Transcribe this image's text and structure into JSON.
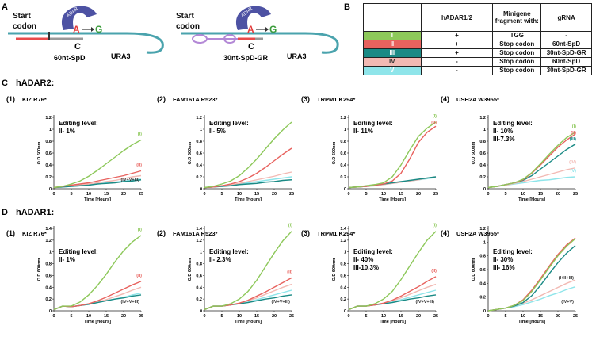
{
  "panel_a": {
    "label": "A",
    "left": {
      "start": "Start codon",
      "enzyme": "ADAR",
      "edit_from": "A",
      "edit_to": "G",
      "paired": "C",
      "guide": "60nt-SpD",
      "reporter": "URA3"
    },
    "right": {
      "start": "Start codon",
      "enzyme": "ADAR",
      "edit_from": "A",
      "edit_to": "G",
      "paired": "C",
      "guide": "30nt-SpD-GR",
      "reporter": "URA3"
    }
  },
  "panel_b": {
    "label": "B",
    "header": [
      "hADAR1/2",
      "Minigene fragment with:",
      "gRNA"
    ],
    "rows": [
      {
        "id": "I",
        "color": "#8dc85a",
        "cells": [
          "+",
          "TGG",
          "-"
        ]
      },
      {
        "id": "II",
        "color": "#e8625e",
        "cells": [
          "+",
          "Stop codon",
          "60nt-SpD"
        ]
      },
      {
        "id": "III",
        "color": "#1a8a85",
        "cells": [
          "+",
          "Stop codon",
          "30nt-SpD-GR"
        ]
      },
      {
        "id": "IV",
        "color": "#f2b9b3",
        "cells": [
          "-",
          "Stop codon",
          "60nt-SpD"
        ]
      },
      {
        "id": "V",
        "color": "#8fe5ea",
        "cells": [
          "-",
          "Stop codon",
          "30nt-SpD-GR"
        ]
      }
    ]
  },
  "panel_c": {
    "label": "C",
    "title": "hADAR2:"
  },
  "panel_d": {
    "label": "D",
    "title": "hADAR1:"
  },
  "chart_data": [
    {
      "type": "line",
      "panel": "(1)",
      "title": "KIZ R76*",
      "annotation": [
        "Editing level:",
        "II- 1%"
      ],
      "x_label": "Time [Hours]",
      "y_label": "O.D 600nm",
      "x": [
        0,
        2.5,
        5,
        7.5,
        10,
        12.5,
        15,
        17.5,
        20,
        22.5,
        25
      ],
      "xlim": [
        0,
        25
      ],
      "xticks": [
        0,
        5,
        10,
        15,
        20,
        25
      ],
      "ylim": [
        0,
        1.2
      ],
      "yticks": [
        0,
        0.2,
        0.4,
        0.6,
        0.8,
        1,
        1.2
      ],
      "series": [
        {
          "name": "(I)",
          "color": "#8dc85a",
          "values": [
            0.02,
            0.04,
            0.08,
            0.13,
            0.21,
            0.31,
            0.42,
            0.53,
            0.64,
            0.74,
            0.82
          ]
        },
        {
          "name": "(II)",
          "color": "#e8625e",
          "values": [
            0.02,
            0.04,
            0.06,
            0.08,
            0.1,
            0.13,
            0.16,
            0.19,
            0.22,
            0.26,
            0.3
          ]
        },
        {
          "color": "#1a8a85",
          "values": [
            0.02,
            0.03,
            0.04,
            0.05,
            0.06,
            0.08,
            0.09,
            0.1,
            0.12,
            0.13,
            0.15
          ]
        },
        {
          "color": "#f2b9b3",
          "values": [
            0.02,
            0.03,
            0.05,
            0.06,
            0.08,
            0.1,
            0.12,
            0.14,
            0.17,
            0.2,
            0.22
          ]
        },
        {
          "color": "#8fe5ea",
          "values": [
            0.02,
            0.03,
            0.04,
            0.05,
            0.07,
            0.08,
            0.1,
            0.11,
            0.13,
            0.14,
            0.16
          ]
        }
      ],
      "group_labels": [
        "(IV+V+III)"
      ]
    },
    {
      "type": "line",
      "panel": "(2)",
      "title": "FAM161A R523*",
      "annotation": [
        "Editing level:",
        "II- 5%"
      ],
      "x_label": "Time [Hours]",
      "y_label": "O.D 600nm",
      "x": [
        0,
        2.5,
        5,
        7.5,
        10,
        12.5,
        15,
        17.5,
        20,
        22.5,
        25
      ],
      "xlim": [
        0,
        25
      ],
      "xticks": [
        0,
        5,
        10,
        15,
        20,
        25
      ],
      "ylim": [
        0,
        1.2
      ],
      "yticks": [
        0,
        0.2,
        0.4,
        0.6,
        0.8,
        1,
        1.2
      ],
      "series": [
        {
          "color": "#8dc85a",
          "values": [
            0.02,
            0.04,
            0.08,
            0.13,
            0.22,
            0.35,
            0.5,
            0.67,
            0.84,
            0.99,
            1.12
          ]
        },
        {
          "color": "#e8625e",
          "values": [
            0.02,
            0.03,
            0.05,
            0.08,
            0.12,
            0.18,
            0.26,
            0.36,
            0.47,
            0.58,
            0.68
          ]
        },
        {
          "color": "#1a8a85",
          "values": [
            0.02,
            0.03,
            0.04,
            0.05,
            0.07,
            0.08,
            0.09,
            0.11,
            0.12,
            0.14,
            0.15
          ]
        },
        {
          "color": "#f2b9b3",
          "values": [
            0.02,
            0.03,
            0.05,
            0.07,
            0.09,
            0.12,
            0.15,
            0.18,
            0.21,
            0.25,
            0.28
          ]
        },
        {
          "color": "#8fe5ea",
          "values": [
            0.02,
            0.03,
            0.04,
            0.06,
            0.08,
            0.1,
            0.12,
            0.14,
            0.16,
            0.18,
            0.2
          ]
        }
      ]
    },
    {
      "type": "line",
      "panel": "(3)",
      "title": "TRPM1 K294*",
      "annotation": [
        "Editing level:",
        "II- 11%"
      ],
      "x_label": "Time [Hours]",
      "y_label": "O.D 600nm",
      "x": [
        0,
        2.5,
        5,
        7.5,
        10,
        12.5,
        15,
        17.5,
        20,
        22.5,
        25
      ],
      "xlim": [
        0,
        25
      ],
      "xticks": [
        0,
        5,
        10,
        15,
        20,
        25
      ],
      "ylim": [
        0,
        1.2
      ],
      "yticks": [
        0,
        0.2,
        0.4,
        0.6,
        0.8,
        1,
        1.2
      ],
      "series": [
        {
          "name": "(I)",
          "color": "#8dc85a",
          "values": [
            0.02,
            0.03,
            0.05,
            0.07,
            0.1,
            0.2,
            0.4,
            0.65,
            0.88,
            1.02,
            1.12
          ]
        },
        {
          "name": "(II)",
          "color": "#e8625e",
          "values": [
            0.02,
            0.03,
            0.04,
            0.06,
            0.08,
            0.13,
            0.26,
            0.5,
            0.78,
            0.95,
            1.05
          ]
        },
        {
          "color": "#1a8a85",
          "values": [
            0.02,
            0.03,
            0.04,
            0.06,
            0.08,
            0.1,
            0.12,
            0.14,
            0.16,
            0.18,
            0.2
          ]
        },
        {
          "color": "#f2b9b3",
          "values": [
            0.02,
            0.03,
            0.04,
            0.05,
            0.07,
            0.09,
            0.11,
            0.13,
            0.15,
            0.18,
            0.2
          ]
        },
        {
          "color": "#8fe5ea",
          "values": [
            0.02,
            0.03,
            0.04,
            0.05,
            0.07,
            0.09,
            0.11,
            0.13,
            0.15,
            0.17,
            0.19
          ]
        }
      ]
    },
    {
      "type": "line",
      "panel": "(4)",
      "title": "USH2A W3955*",
      "annotation": [
        "Editing level:",
        "II- 10%",
        "III-7.3%"
      ],
      "x_label": "Time [Hours]",
      "y_label": "O.D 600nm",
      "x": [
        0,
        2.5,
        5,
        7.5,
        10,
        12.5,
        15,
        17.5,
        20,
        22.5,
        25
      ],
      "xlim": [
        0,
        25
      ],
      "xticks": [
        0,
        5,
        10,
        15,
        20,
        25
      ],
      "ylim": [
        0,
        1.2
      ],
      "yticks": [
        0,
        0.2,
        0.4,
        0.6,
        0.8,
        1,
        1.2
      ],
      "series": [
        {
          "name": "(I)",
          "color": "#8dc85a",
          "values": [
            0.02,
            0.04,
            0.07,
            0.1,
            0.16,
            0.27,
            0.42,
            0.58,
            0.73,
            0.86,
            0.95
          ]
        },
        {
          "name": "(II)",
          "color": "#e8625e",
          "values": [
            0.02,
            0.04,
            0.07,
            0.1,
            0.15,
            0.26,
            0.4,
            0.55,
            0.7,
            0.82,
            0.92
          ]
        },
        {
          "name": "(III)",
          "color": "#1a8a85",
          "values": [
            0.02,
            0.04,
            0.07,
            0.1,
            0.14,
            0.22,
            0.33,
            0.44,
            0.55,
            0.66,
            0.75
          ]
        },
        {
          "name": "(IV)",
          "color": "#f2b9b3",
          "values": [
            0.02,
            0.04,
            0.06,
            0.09,
            0.12,
            0.16,
            0.2,
            0.24,
            0.28,
            0.32,
            0.35
          ]
        },
        {
          "name": "(V)",
          "color": "#8fe5ea",
          "values": [
            0.02,
            0.04,
            0.06,
            0.08,
            0.1,
            0.12,
            0.14,
            0.15,
            0.17,
            0.19,
            0.2
          ]
        }
      ]
    },
    {
      "type": "line",
      "panel": "(1)",
      "title": "KIZ R76*",
      "annotation": [
        "Editing level:",
        "II- 1%"
      ],
      "x_label": "Time [Hours]",
      "y_label": "O.D 600nm",
      "x": [
        0,
        2.5,
        5,
        7.5,
        10,
        12.5,
        15,
        17.5,
        20,
        22.5,
        25
      ],
      "xlim": [
        0,
        25
      ],
      "xticks": [
        0,
        5,
        10,
        15,
        20,
        25
      ],
      "ylim": [
        0,
        1.4
      ],
      "yticks": [
        0,
        0.2,
        0.4,
        0.6,
        0.8,
        1,
        1.2,
        1.4
      ],
      "series": [
        {
          "name": "(I)",
          "color": "#8dc85a",
          "values": [
            0.02,
            0.08,
            0.08,
            0.15,
            0.27,
            0.43,
            0.62,
            0.83,
            1.02,
            1.17,
            1.28
          ]
        },
        {
          "name": "(II)",
          "color": "#e8625e",
          "values": [
            0.02,
            0.08,
            0.07,
            0.09,
            0.12,
            0.17,
            0.23,
            0.3,
            0.37,
            0.44,
            0.5
          ]
        },
        {
          "color": "#1a8a85",
          "values": [
            0.02,
            0.08,
            0.07,
            0.09,
            0.11,
            0.14,
            0.17,
            0.2,
            0.22,
            0.25,
            0.27
          ]
        },
        {
          "color": "#f2b9b3",
          "values": [
            0.02,
            0.08,
            0.07,
            0.09,
            0.12,
            0.15,
            0.19,
            0.24,
            0.29,
            0.35,
            0.4
          ]
        },
        {
          "color": "#8fe5ea",
          "values": [
            0.02,
            0.08,
            0.07,
            0.09,
            0.11,
            0.14,
            0.17,
            0.2,
            0.23,
            0.27,
            0.3
          ]
        }
      ],
      "group_labels": [
        "(IV+V+III)"
      ]
    },
    {
      "type": "line",
      "panel": "(2)",
      "title": "FAM161A R523*",
      "annotation": [
        "Editing level:",
        "II- 2.3%"
      ],
      "x_label": "Time [Hours]",
      "y_label": "O.D 600nm",
      "x": [
        0,
        2.5,
        5,
        7.5,
        10,
        12.5,
        15,
        17.5,
        20,
        22.5,
        25
      ],
      "xlim": [
        0,
        25
      ],
      "xticks": [
        0,
        5,
        10,
        15,
        20,
        25
      ],
      "ylim": [
        0,
        1.4
      ],
      "yticks": [
        0,
        0.2,
        0.4,
        0.6,
        0.8,
        1,
        1.2,
        1.4
      ],
      "series": [
        {
          "name": "(I)",
          "color": "#8dc85a",
          "values": [
            0.02,
            0.08,
            0.08,
            0.12,
            0.2,
            0.33,
            0.52,
            0.75,
            0.98,
            1.19,
            1.35
          ]
        },
        {
          "name": "(II)",
          "color": "#e8625e",
          "values": [
            0.02,
            0.08,
            0.08,
            0.1,
            0.13,
            0.18,
            0.25,
            0.32,
            0.4,
            0.48,
            0.56
          ]
        },
        {
          "color": "#1a8a85",
          "values": [
            0.02,
            0.08,
            0.08,
            0.1,
            0.12,
            0.14,
            0.17,
            0.2,
            0.22,
            0.25,
            0.27
          ]
        },
        {
          "color": "#f2b9b3",
          "values": [
            0.02,
            0.08,
            0.08,
            0.1,
            0.13,
            0.17,
            0.22,
            0.28,
            0.34,
            0.4,
            0.45
          ]
        },
        {
          "color": "#8fe5ea",
          "values": [
            0.02,
            0.08,
            0.08,
            0.1,
            0.12,
            0.15,
            0.19,
            0.23,
            0.27,
            0.31,
            0.35
          ]
        }
      ],
      "group_labels": [
        "(IV+V+III)"
      ]
    },
    {
      "type": "line",
      "panel": "(3)",
      "title": "TRPM1 K294*",
      "annotation": [
        "Editing level:",
        "II- 40%",
        "III-10.3%"
      ],
      "x_label": "Time [Hours]",
      "y_label": "O.D 600nm",
      "x": [
        0,
        2.5,
        5,
        7.5,
        10,
        12.5,
        15,
        17.5,
        20,
        22.5,
        25
      ],
      "xlim": [
        0,
        25
      ],
      "xticks": [
        0,
        5,
        10,
        15,
        20,
        25
      ],
      "ylim": [
        0,
        1.4
      ],
      "yticks": [
        0,
        0.2,
        0.4,
        0.6,
        0.8,
        1,
        1.2,
        1.4
      ],
      "series": [
        {
          "name": "(I)",
          "color": "#8dc85a",
          "values": [
            0.02,
            0.08,
            0.08,
            0.12,
            0.2,
            0.33,
            0.53,
            0.76,
            0.99,
            1.2,
            1.35
          ]
        },
        {
          "name": "(II)",
          "color": "#e8625e",
          "values": [
            0.02,
            0.08,
            0.08,
            0.1,
            0.13,
            0.18,
            0.25,
            0.33,
            0.41,
            0.5,
            0.58
          ]
        },
        {
          "color": "#1a8a85",
          "values": [
            0.02,
            0.08,
            0.08,
            0.1,
            0.12,
            0.14,
            0.17,
            0.2,
            0.22,
            0.25,
            0.27
          ]
        },
        {
          "color": "#f2b9b3",
          "values": [
            0.02,
            0.08,
            0.08,
            0.1,
            0.13,
            0.17,
            0.22,
            0.28,
            0.34,
            0.4,
            0.45
          ]
        },
        {
          "color": "#8fe5ea",
          "values": [
            0.02,
            0.08,
            0.08,
            0.1,
            0.12,
            0.15,
            0.19,
            0.23,
            0.27,
            0.31,
            0.35
          ]
        }
      ],
      "group_labels": [
        "(IV+V+III)"
      ]
    },
    {
      "type": "line",
      "panel": "(4)",
      "title": "USH2A W3955*",
      "annotation": [
        "Editing level:",
        "II- 30%",
        "III- 16%"
      ],
      "x_label": "Time [Hours]",
      "y_label": "O.D 600nm",
      "x": [
        0,
        2.5,
        5,
        7.5,
        10,
        12.5,
        15,
        17.5,
        20,
        22.5,
        25
      ],
      "xlim": [
        0,
        25
      ],
      "xticks": [
        0,
        5,
        10,
        15,
        20,
        25
      ],
      "ylim": [
        0,
        1.2
      ],
      "yticks": [
        0,
        0.2,
        0.4,
        0.6,
        0.8,
        1,
        1.2
      ],
      "series": [
        {
          "color": "#8dc85a",
          "values": [
            0,
            0.02,
            0.04,
            0.08,
            0.15,
            0.28,
            0.45,
            0.63,
            0.8,
            0.94,
            1.05
          ]
        },
        {
          "color": "#e8625e",
          "values": [
            0,
            0.02,
            0.04,
            0.08,
            0.16,
            0.3,
            0.47,
            0.65,
            0.82,
            0.96,
            1.06
          ]
        },
        {
          "color": "#1a8a85",
          "values": [
            0,
            0.02,
            0.04,
            0.07,
            0.12,
            0.22,
            0.37,
            0.54,
            0.7,
            0.84,
            0.95
          ]
        },
        {
          "color": "#f2b9b3",
          "values": [
            0,
            0.02,
            0.04,
            0.07,
            0.11,
            0.16,
            0.22,
            0.28,
            0.34,
            0.4,
            0.45
          ]
        },
        {
          "color": "#8fe5ea",
          "values": [
            0,
            0.02,
            0.04,
            0.06,
            0.09,
            0.13,
            0.17,
            0.22,
            0.26,
            0.31,
            0.35
          ]
        }
      ],
      "group_labels": [
        "(I+II+III)",
        "(IV+V)"
      ]
    }
  ]
}
